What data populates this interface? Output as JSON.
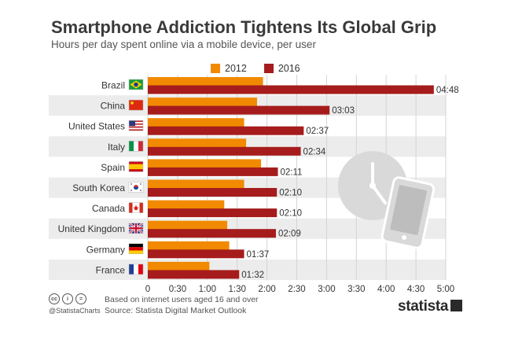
{
  "header": {
    "title": "Smartphone Addiction Tightens Its Global Grip",
    "subtitle": "Hours per day spent online via a mobile device, per user"
  },
  "legend": [
    {
      "label": "2012",
      "color": "#f18a00"
    },
    {
      "label": "2016",
      "color": "#a61c1c"
    }
  ],
  "chart_data": {
    "type": "bar",
    "orientation": "horizontal",
    "categories": [
      "Brazil",
      "China",
      "United States",
      "Italy",
      "Spain",
      "South Korea",
      "Canada",
      "United Kingdom",
      "Germany",
      "France"
    ],
    "flags": [
      "brazil-flag",
      "china-flag",
      "usa-flag",
      "italy-flag",
      "spain-flag",
      "south-korea-flag",
      "canada-flag",
      "uk-flag",
      "germany-flag",
      "france-flag"
    ],
    "series": [
      {
        "name": "2012",
        "color": "#f18a00",
        "values": [
          116,
          110,
          97,
          99,
          114,
          97,
          77,
          80,
          82,
          62
        ]
      },
      {
        "name": "2016",
        "color": "#a61c1c",
        "values": [
          288,
          183,
          157,
          154,
          131,
          130,
          130,
          129,
          97,
          92
        ],
        "labels": [
          "04:48",
          "03:03",
          "02:37",
          "02:34",
          "02:11",
          "02:10",
          "02:10",
          "02:09",
          "01:37",
          "01:32"
        ]
      }
    ],
    "value_unit": "minutes",
    "x_ticks": [
      0,
      30,
      60,
      90,
      120,
      150,
      180,
      210,
      240,
      270,
      300
    ],
    "x_tick_labels": [
      "0",
      "0:30",
      "1:00",
      "1:30",
      "2:00",
      "2:30",
      "3:00",
      "3:30",
      "4:00",
      "4:30",
      "5:00"
    ],
    "xlim": [
      0,
      300
    ],
    "grid": true,
    "legend_position": "top"
  },
  "footer": {
    "note_line1": "Based on internet users aged 16 and over",
    "note_line2": "Source: Statista Digital Market Outlook",
    "handle": "@StatistaCharts",
    "brand": "statista",
    "cc_icons": [
      "cc",
      "i",
      "="
    ]
  }
}
